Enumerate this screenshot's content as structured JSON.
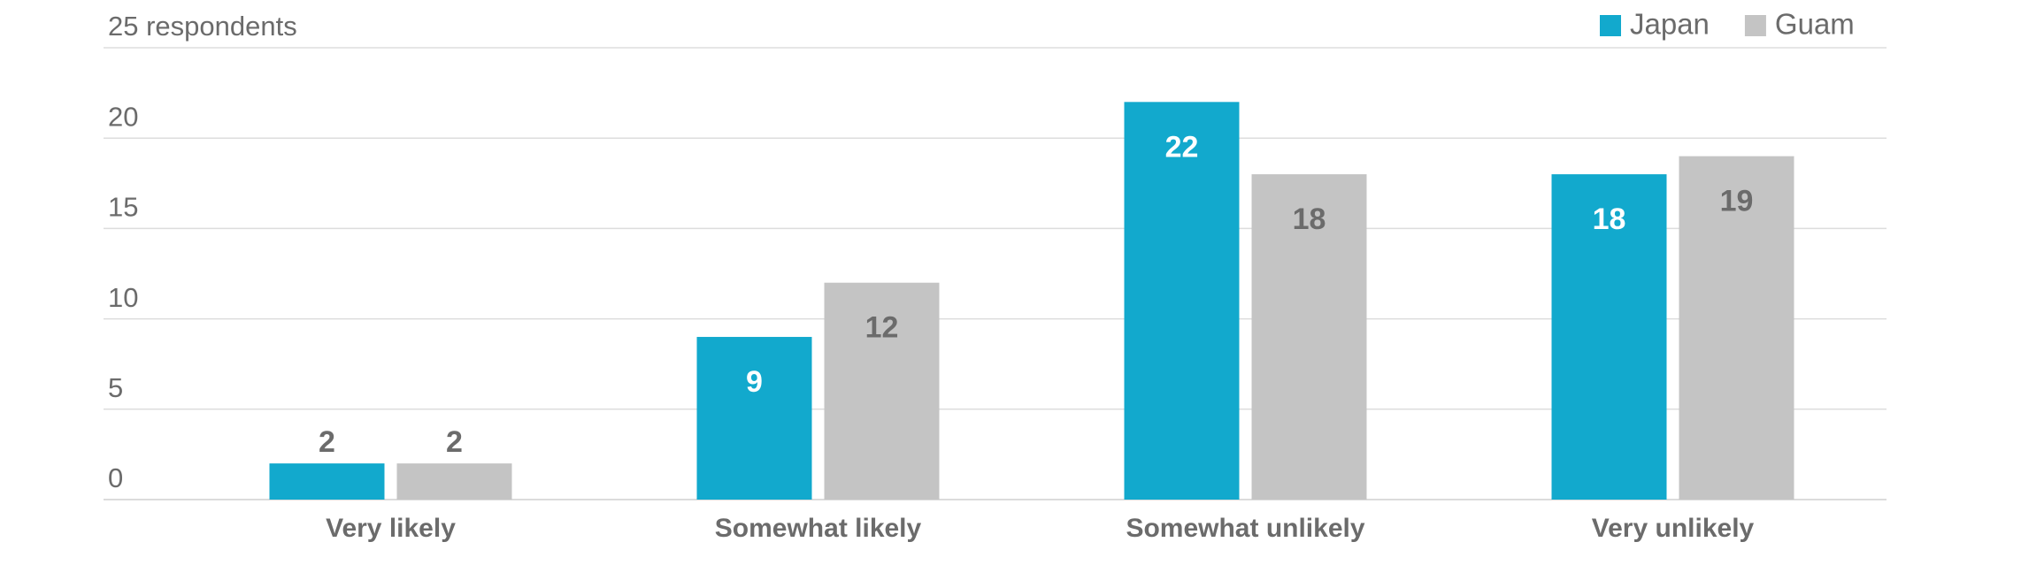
{
  "chart_data": {
    "type": "bar",
    "categories": [
      "Very likely",
      "Somewhat likely",
      "Somewhat unlikely",
      "Very unlikely"
    ],
    "series": [
      {
        "name": "Japan",
        "color": "#12a9cd",
        "values": [
          2,
          9,
          22,
          18
        ]
      },
      {
        "name": "Guam",
        "color": "#c4c4c4",
        "values": [
          2,
          12,
          18,
          19
        ]
      }
    ],
    "ylim": [
      0,
      25
    ],
    "yticks": [
      0,
      5,
      10,
      15,
      20,
      {
        "value": 25,
        "label": "25 respondents"
      }
    ],
    "grid": true,
    "legend": "top-right"
  }
}
